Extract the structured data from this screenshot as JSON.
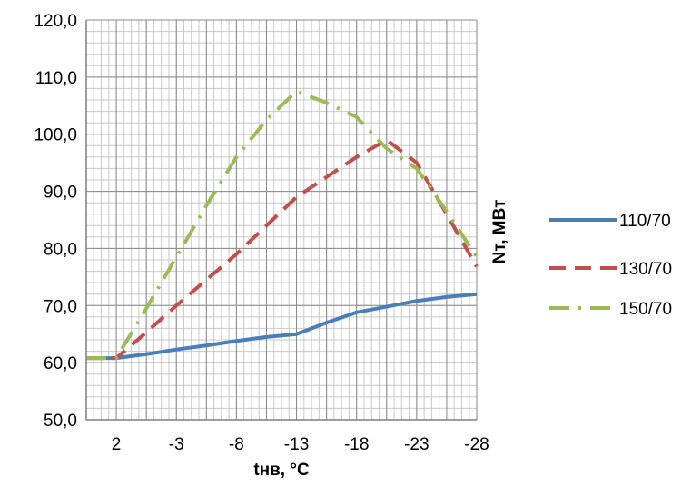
{
  "chart_data": {
    "type": "line",
    "x": [
      "",
      "2",
      "",
      "-3",
      "",
      "-8",
      "",
      "-13",
      "",
      "-18",
      "",
      "-23",
      "",
      "-28"
    ],
    "xtick_labels": [
      "2",
      "-3",
      "-8",
      "-13",
      "-18",
      "-23",
      "-28"
    ],
    "xlabel": "tнв, °C",
    "ylabel": "Nт, МВт",
    "ylim": [
      50,
      120
    ],
    "yticks": [
      "50,0",
      "60,0",
      "70,0",
      "80,0",
      "90,0",
      "100,0",
      "110,0",
      "120,0"
    ],
    "grid": true,
    "legend_position": "right",
    "series": [
      {
        "name": "110/70",
        "color": "#4a7ebb",
        "style": "solid",
        "values": [
          60.8,
          60.8,
          61.5,
          62.3,
          63.0,
          63.8,
          64.5,
          65.0,
          67.0,
          68.8,
          69.8,
          70.8,
          71.5,
          72.0
        ]
      },
      {
        "name": "130/70",
        "color": "#c0504d",
        "style": "dash",
        "values": [
          60.8,
          60.8,
          65.3,
          70.0,
          74.5,
          79.0,
          84.0,
          89.0,
          92.5,
          96.0,
          99.0,
          95.0,
          86.0,
          76.8
        ]
      },
      {
        "name": "150/70",
        "color": "#9bbb59",
        "style": "dashdot",
        "values": [
          60.8,
          60.8,
          69.5,
          78.5,
          87.5,
          96.0,
          102.5,
          107.5,
          105.5,
          103.0,
          97.5,
          94.0,
          86.5,
          78.5
        ]
      }
    ]
  }
}
